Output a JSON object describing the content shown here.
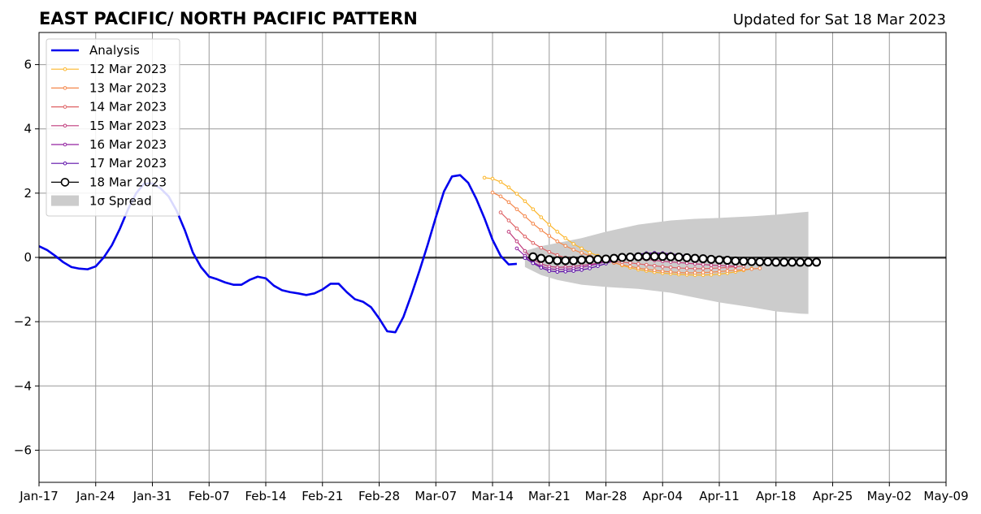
{
  "chart_data": {
    "type": "line",
    "title": "EAST PACIFIC/ NORTH PACIFIC PATTERN",
    "subtitle": "Updated for Sat 18 Mar 2023",
    "ylim": [
      -7,
      7
    ],
    "yticks": [
      -6,
      -4,
      -2,
      0,
      2,
      4,
      6
    ],
    "ytick_labels": [
      "−6",
      "−4",
      "−2",
      "0",
      "2",
      "4",
      "6"
    ],
    "xlim": [
      "2023-01-17",
      "2023-05-09"
    ],
    "xticks": [
      "2023-01-17",
      "2023-01-24",
      "2023-01-31",
      "2023-02-07",
      "2023-02-14",
      "2023-02-21",
      "2023-02-28",
      "2023-03-07",
      "2023-03-14",
      "2023-03-21",
      "2023-03-28",
      "2023-04-04",
      "2023-04-11",
      "2023-04-18",
      "2023-04-25",
      "2023-05-02",
      "2023-05-09"
    ],
    "xtick_labels": [
      "Jan-17",
      "Jan-24",
      "Jan-31",
      "Feb-07",
      "Feb-14",
      "Feb-21",
      "Feb-28",
      "Mar-07",
      "Mar-14",
      "Mar-21",
      "Mar-28",
      "Apr-04",
      "Apr-11",
      "Apr-18",
      "Apr-25",
      "May-02",
      "May-09"
    ],
    "grid": true,
    "legend_position": "top-left",
    "analysis": {
      "name": "Analysis",
      "color": "#0000ee",
      "start": "2023-01-17",
      "values": [
        0.35,
        0.23,
        0.05,
        -0.15,
        -0.3,
        -0.35,
        -0.37,
        -0.28,
        0.0,
        0.38,
        0.9,
        1.5,
        2.0,
        2.3,
        2.3,
        2.15,
        1.9,
        1.45,
        0.85,
        0.15,
        -0.3,
        -0.6,
        -0.68,
        -0.78,
        -0.85,
        -0.85,
        -0.7,
        -0.6,
        -0.65,
        -0.88,
        -1.02,
        -1.08,
        -1.12,
        -1.17,
        -1.12,
        -1.0,
        -0.82,
        -0.82,
        -1.08,
        -1.3,
        -1.38,
        -1.55,
        -1.9,
        -2.3,
        -2.33,
        -1.85,
        -1.15,
        -0.4,
        0.4,
        1.25,
        2.05,
        2.52,
        2.56,
        2.32,
        1.82,
        1.22,
        0.55,
        0.05,
        -0.22,
        -0.2
      ]
    },
    "spread": {
      "name": "1σ Spread",
      "color": "#cccccc",
      "start": "2023-03-18",
      "x_days": [
        0,
        2,
        4,
        7,
        10,
        14,
        18,
        21,
        24,
        28,
        31,
        34,
        35
      ],
      "upper": [
        0.2,
        0.35,
        0.45,
        0.6,
        0.8,
        1.02,
        1.15,
        1.2,
        1.23,
        1.28,
        1.33,
        1.4,
        1.42
      ],
      "lower": [
        -0.3,
        -0.55,
        -0.7,
        -0.85,
        -0.92,
        -0.98,
        -1.1,
        -1.25,
        -1.4,
        -1.55,
        -1.68,
        -1.75,
        -1.76
      ]
    },
    "forecasts": [
      {
        "name": "12 Mar 2023",
        "color": "#fcb62b",
        "start": "2023-03-13",
        "values": [
          2.48,
          2.45,
          2.35,
          2.18,
          1.98,
          1.75,
          1.5,
          1.25,
          1.02,
          0.8,
          0.6,
          0.42,
          0.28,
          0.15,
          0.05,
          -0.05,
          -0.15,
          -0.25,
          -0.32,
          -0.38,
          -0.42,
          -0.46,
          -0.49,
          -0.51,
          -0.53,
          -0.54,
          -0.55,
          -0.55,
          -0.54,
          -0.52,
          -0.49,
          -0.45,
          -0.4,
          -0.35
        ]
      },
      {
        "name": "13 Mar 2023",
        "color": "#f4874b",
        "start": "2023-03-14",
        "values": [
          2.02,
          1.9,
          1.72,
          1.5,
          1.28,
          1.05,
          0.85,
          0.67,
          0.5,
          0.36,
          0.24,
          0.14,
          0.05,
          -0.03,
          -0.1,
          -0.17,
          -0.23,
          -0.28,
          -0.33,
          -0.37,
          -0.4,
          -0.43,
          -0.45,
          -0.47,
          -0.48,
          -0.48,
          -0.47,
          -0.46,
          -0.44,
          -0.42,
          -0.4,
          -0.38,
          -0.36,
          -0.34
        ]
      },
      {
        "name": "14 Mar 2023",
        "color": "#de6164",
        "start": "2023-03-15",
        "values": [
          1.4,
          1.15,
          0.9,
          0.65,
          0.45,
          0.3,
          0.17,
          0.07,
          -0.01,
          -0.05,
          -0.08,
          -0.1,
          -0.11,
          -0.12,
          -0.13,
          -0.15,
          -0.17,
          -0.2,
          -0.23,
          -0.26,
          -0.29,
          -0.31,
          -0.33,
          -0.34,
          -0.35,
          -0.35,
          -0.34,
          -0.33,
          -0.31,
          -0.29,
          -0.27
        ]
      },
      {
        "name": "15 Mar 2023",
        "color": "#bf3a7b",
        "start": "2023-03-16",
        "values": [
          0.8,
          0.5,
          0.2,
          -0.05,
          -0.2,
          -0.28,
          -0.31,
          -0.3,
          -0.28,
          -0.25,
          -0.22,
          -0.18,
          -0.13,
          -0.08,
          -0.04,
          -0.02,
          -0.03,
          -0.06,
          -0.09,
          -0.12,
          -0.14,
          -0.16,
          -0.18,
          -0.2,
          -0.22,
          -0.24,
          -0.25,
          -0.26,
          -0.27
        ]
      },
      {
        "name": "16 Mar 2023",
        "color": "#9323a1",
        "start": "2023-03-17",
        "values": [
          0.28,
          0.05,
          -0.15,
          -0.28,
          -0.35,
          -0.38,
          -0.37,
          -0.35,
          -0.31,
          -0.26,
          -0.2,
          -0.13,
          -0.06,
          0.0,
          0.05,
          0.09,
          0.11,
          0.12,
          0.11,
          0.09,
          0.06,
          0.03,
          0.0,
          -0.03,
          -0.06,
          -0.09,
          -0.12,
          -0.14,
          -0.16
        ]
      },
      {
        "name": "17 Mar 2023",
        "color": "#5d0fa9",
        "start": "2023-03-18",
        "values": [
          -0.02,
          -0.18,
          -0.32,
          -0.42,
          -0.45,
          -0.44,
          -0.42,
          -0.39,
          -0.34,
          -0.27,
          -0.19,
          -0.1,
          -0.02,
          0.05,
          0.1,
          0.13,
          0.14,
          0.13,
          0.11,
          0.08,
          0.05,
          0.02,
          -0.01,
          -0.04,
          -0.07,
          -0.1,
          -0.12
        ]
      },
      {
        "name": "18 Mar 2023",
        "color": "#000000",
        "start": "2023-03-19",
        "values": [
          0.02,
          -0.03,
          -0.07,
          -0.1,
          -0.1,
          -0.1,
          -0.08,
          -0.07,
          -0.06,
          -0.05,
          -0.03,
          0.0,
          0.01,
          0.02,
          0.03,
          0.03,
          0.03,
          0.02,
          0.01,
          -0.01,
          -0.03,
          -0.04,
          -0.06,
          -0.08,
          -0.09,
          -0.11,
          -0.12,
          -0.13,
          -0.14,
          -0.14,
          -0.15,
          -0.15,
          -0.15,
          -0.15,
          -0.15,
          -0.15
        ]
      }
    ]
  }
}
